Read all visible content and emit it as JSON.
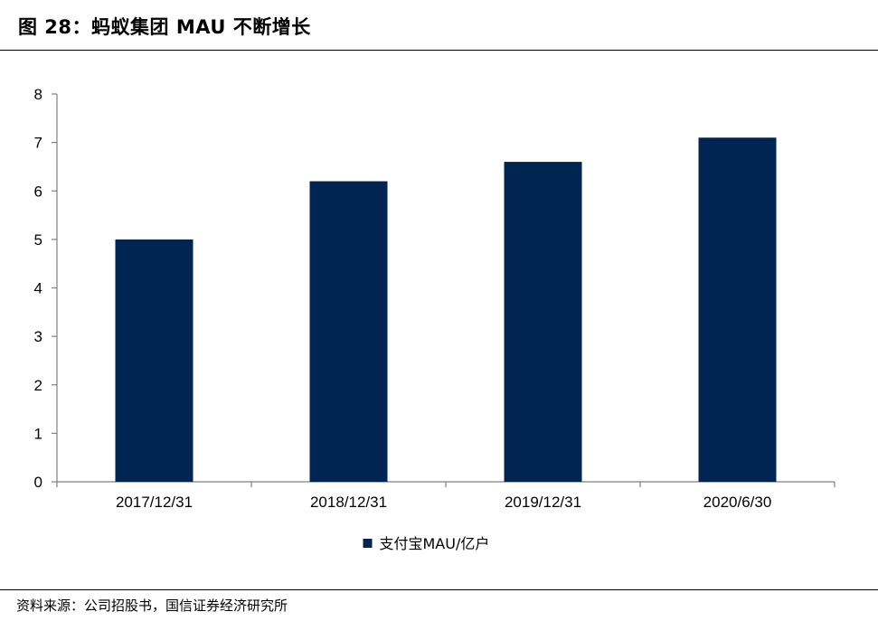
{
  "figure": {
    "title": "图 28：蚂蚁集团 MAU 不断增长",
    "source": "资料来源：公司招股书，国信证券经济研究所"
  },
  "colors": {
    "bar": "#002552",
    "axis": "#808080",
    "text": "#000000"
  },
  "chart_data": {
    "type": "bar",
    "categories": [
      "2017/12/31",
      "2018/12/31",
      "2019/12/31",
      "2020/6/30"
    ],
    "series": [
      {
        "name": "支付宝MAU/亿户",
        "values": [
          5.0,
          6.2,
          6.6,
          7.1
        ]
      }
    ],
    "title": "",
    "xlabel": "",
    "ylabel": "",
    "ylim": [
      0,
      8
    ],
    "yticks": [
      0,
      1,
      2,
      3,
      4,
      5,
      6,
      7,
      8
    ],
    "grid": false,
    "legend": "bottom-center"
  }
}
